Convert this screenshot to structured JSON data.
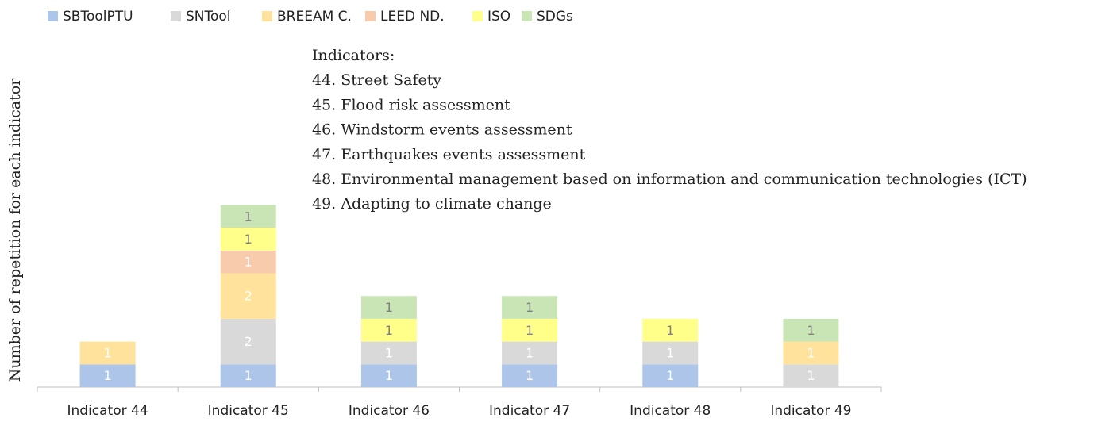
{
  "chart_data": {
    "type": "stacked_bar",
    "y_axis_label": "Number of repetition for each indicator",
    "annotation": [
      "Indicators:",
      "44. Street Safety",
      "45. Flood risk assessment",
      "46. Windstorm events assessment",
      "47. Earthquakes events assessment",
      "48. Environmental management based on information and communication technologies (ICT)",
      "49. Adapting to climate change"
    ],
    "categories": [
      "Indicator 44",
      "Indicator 45",
      "Indicator 46",
      "Indicator 47",
      "Indicator 48",
      "Indicator 49"
    ],
    "ylim": [
      0,
      8
    ],
    "legend": "top",
    "series": [
      {
        "name": "SBToolPTU",
        "color": "#adc5e8",
        "label_color": "#ffffff",
        "values": [
          1,
          1,
          1,
          1,
          1,
          null
        ]
      },
      {
        "name": "SNTool",
        "color": "#d9d9d9",
        "label_color": "#ffffff",
        "values": [
          null,
          2,
          1,
          1,
          1,
          1
        ]
      },
      {
        "name": "BREEAM C.",
        "color": "#ffe29c",
        "label_color": "#ffffff",
        "values": [
          1,
          2,
          null,
          null,
          null,
          1
        ]
      },
      {
        "name": "LEED ND.",
        "color": "#f8cbad",
        "label_color": "#ffffff",
        "values": [
          null,
          1,
          null,
          null,
          null,
          null
        ]
      },
      {
        "name": "ISO",
        "color": "#ffff8a",
        "label_color": "#808080",
        "values": [
          null,
          1,
          1,
          1,
          1,
          null
        ]
      },
      {
        "name": "SDGs",
        "color": "#c9e5b5",
        "label_color": "#808080",
        "values": [
          null,
          1,
          1,
          1,
          null,
          1
        ]
      }
    ]
  }
}
